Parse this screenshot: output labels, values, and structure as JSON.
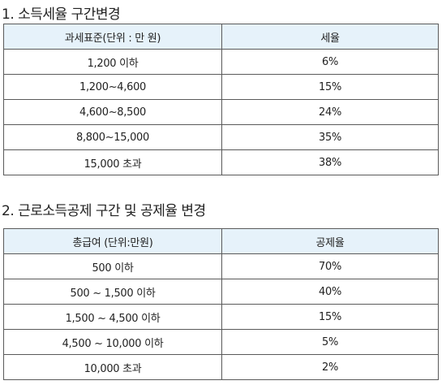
{
  "section1": {
    "title": "1. 소득세율 구간변경",
    "headers": [
      "과세표준(단위 : 만 원)",
      "세율"
    ],
    "rows": [
      [
        "1,200 이하",
        "6%"
      ],
      [
        "1,200~4,600",
        "15%"
      ],
      [
        "4,600~8,500",
        "24%"
      ],
      [
        "8,800~15,000",
        "35%"
      ],
      [
        "15,000 초과",
        "38%"
      ]
    ]
  },
  "section2": {
    "title": "2. 근로소득공제 구간 및 공제율 변경",
    "headers": [
      "총급여 (단위:만원)",
      "공제율"
    ],
    "rows": [
      [
        "500 이하",
        "70%"
      ],
      [
        "500 ~ 1,500 이하",
        "40%"
      ],
      [
        "1,500 ~ 4,500 이하",
        "15%"
      ],
      [
        "4,500 ~ 10,000 이하",
        "5%"
      ],
      [
        "10,000 초과",
        "2%"
      ]
    ]
  },
  "colors": {
    "header_bg": "#e6f2fa",
    "border": "#5a5a5a",
    "text": "#222222"
  }
}
